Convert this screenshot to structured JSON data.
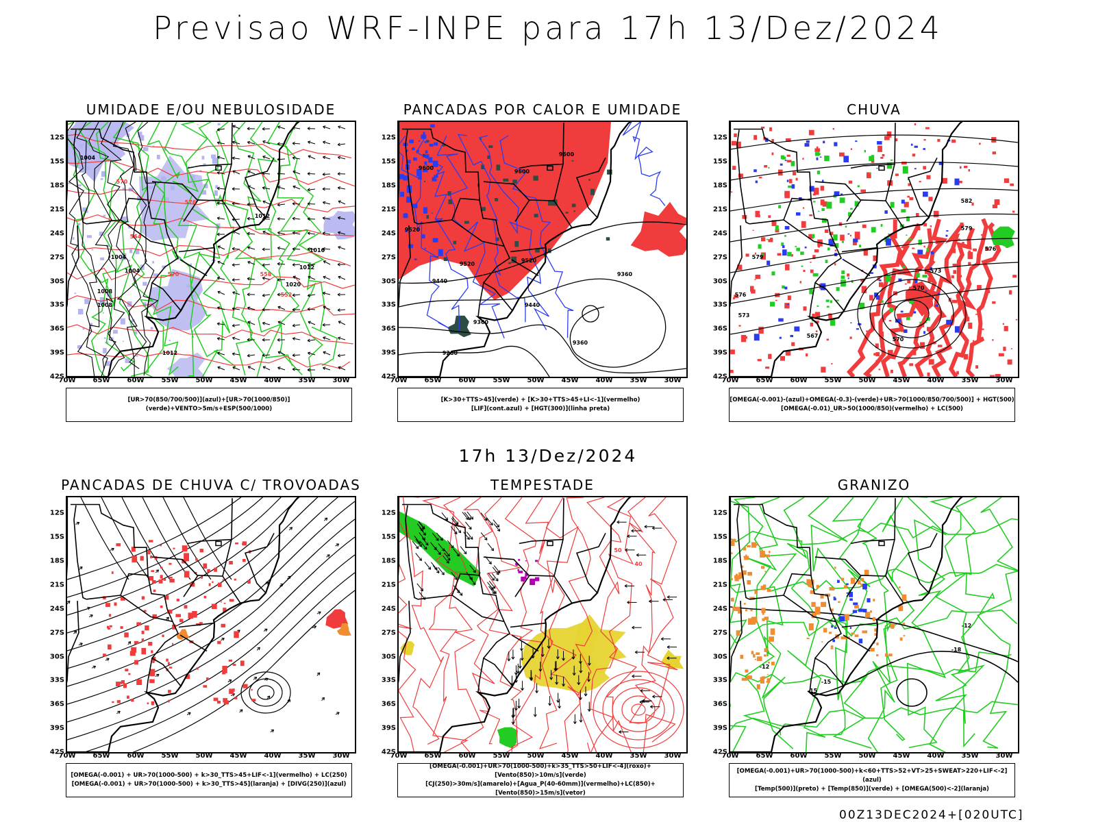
{
  "header": {
    "title": "Previsao WRF-INPE  para 17h 13/Dez/2024"
  },
  "middle": {
    "subtitle": "17h 13/Dez/2024"
  },
  "footer": {
    "run_stamp": "00Z13DEC2024+[020UTC]"
  },
  "axes": {
    "lat_labels": [
      "12S",
      "15S",
      "18S",
      "21S",
      "24S",
      "27S",
      "30S",
      "33S",
      "36S",
      "39S",
      "42S"
    ],
    "lon_labels": [
      "70W",
      "65W",
      "60W",
      "55W",
      "50W",
      "45W",
      "40W",
      "35W",
      "30W"
    ]
  },
  "colors": {
    "red": "#f03c3c",
    "green": "#22cc22",
    "blue": "#2a3cf0",
    "lavender": "#b4b4f0",
    "yellow": "#e6d432",
    "orange": "#f08c32",
    "darkgreen": "#2c4c44",
    "contour": "#000000"
  },
  "panels": [
    {
      "title": "UMIDADE E/OU NEBULOSIDADE",
      "legend": [
        "[UR>70(850/700/500)](azul)+[UR>70(1000/850)](verde)+VENTO>5m/s+ESP(500/1000)"
      ],
      "contour_labels": [
        "1008",
        "1004",
        "1004",
        "1012",
        "1012",
        "1016",
        "1020",
        "1004",
        "1008",
        "1012",
        "570",
        "576",
        "564",
        "558",
        "552",
        "570"
      ]
    },
    {
      "title": "PANCADAS POR CALOR E UMIDADE",
      "legend": [
        "[K>30+TTS>45](verde) + [K>30+TTS>45+LI<-1](vermelho)",
        "[LIF](cont.azul) + [HGT(300)](linha preta)"
      ],
      "contour_labels": [
        "9600",
        "9600",
        "9600",
        "9520",
        "9520",
        "9520",
        "9440",
        "9440",
        "9360",
        "9360",
        "9360",
        "9280"
      ]
    },
    {
      "title": "CHUVA",
      "legend": [
        "[OMEGA(-0.001)-(azul)+OMEGA(-0.3)-(verde)+UR>70(1000/850/700/500)] + HGT(500)",
        "[OMEGA(-0.01)_UR>50(1000/850)(vermelho) + LC(500)"
      ],
      "contour_labels": [
        "582",
        "579",
        "576",
        "573",
        "570",
        "567",
        "570",
        "573",
        "576",
        "579"
      ]
    },
    {
      "title": "PANCADAS DE CHUVA C/ TROVOADAS",
      "legend": [
        "[OMEGA(-0.001) + UR>70(1000-500) + k>30_TTS>45+LIF<-1](vermelho) + LC(250)",
        "[OMEGA(-0.001) + UR>70(1000-500) + k>30_TTS>45](laranja) + [DIVG(250)](azul)"
      ],
      "contour_labels": []
    },
    {
      "title": "TEMPESTADE",
      "legend": [
        "[OMEGA(-0.001)+UR>70(1000-500)+k>35_TTS>50+LIF<-4](roxo)+[Vento(850)>10m/s](verde)",
        "[CJ(250)>30m/s](amarelo)+[Agua_P(40-60mm)](vermelho)+LC(850)+[Vento(850)>15m/s](vetor)"
      ],
      "contour_labels": [
        "40",
        "50"
      ]
    },
    {
      "title": "GRANIZO",
      "legend": [
        "[OMEGA(-0.001)+UR>70(1000-500)+k<60+TTS>52+VT>25+SWEAT>220+LIF<-2](azul)",
        "[Temp(500)](preto) + [Temp(850)](verde) + [OMEGA(500)<-2](laranja)"
      ],
      "contour_labels": [
        "-12",
        "-15",
        "-12",
        "-15",
        "-18"
      ]
    }
  ]
}
